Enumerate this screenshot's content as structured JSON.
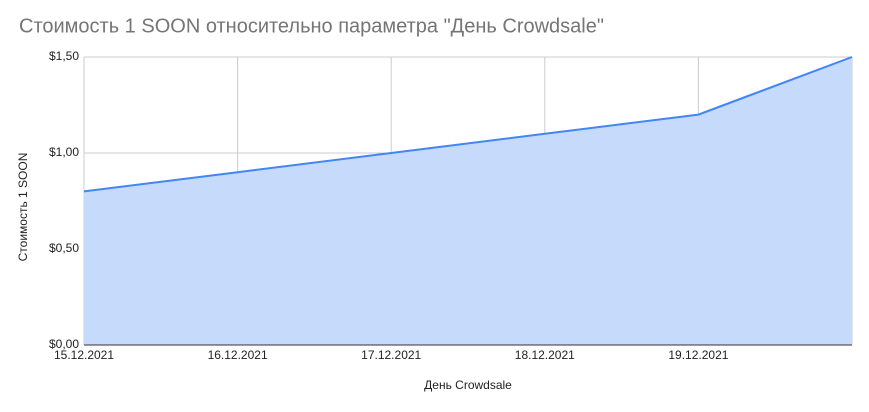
{
  "chart_data": {
    "type": "area",
    "title": "Стоимость 1 SOON относительно параметра \"День Crowdsale\"",
    "x_label": "День Crowdsale",
    "y_label": "Стоимость 1 SOON",
    "categories": [
      "15.12.2021",
      "16.12.2021",
      "17.12.2021",
      "18.12.2021",
      "19.12.2021",
      null
    ],
    "values": [
      0.8,
      0.9,
      1.0,
      1.1,
      1.2,
      1.5
    ],
    "color": "#4285f4",
    "fill": "#c6dafb",
    "ylim": [
      0,
      1.5
    ],
    "yticks": [
      {
        "value": 0,
        "label": "$0,00"
      },
      {
        "value": 0.5,
        "label": "$0,50"
      },
      {
        "value": 1,
        "label": "$1,00"
      },
      {
        "value": 1.5,
        "label": "$1,50"
      }
    ],
    "grid": true
  }
}
